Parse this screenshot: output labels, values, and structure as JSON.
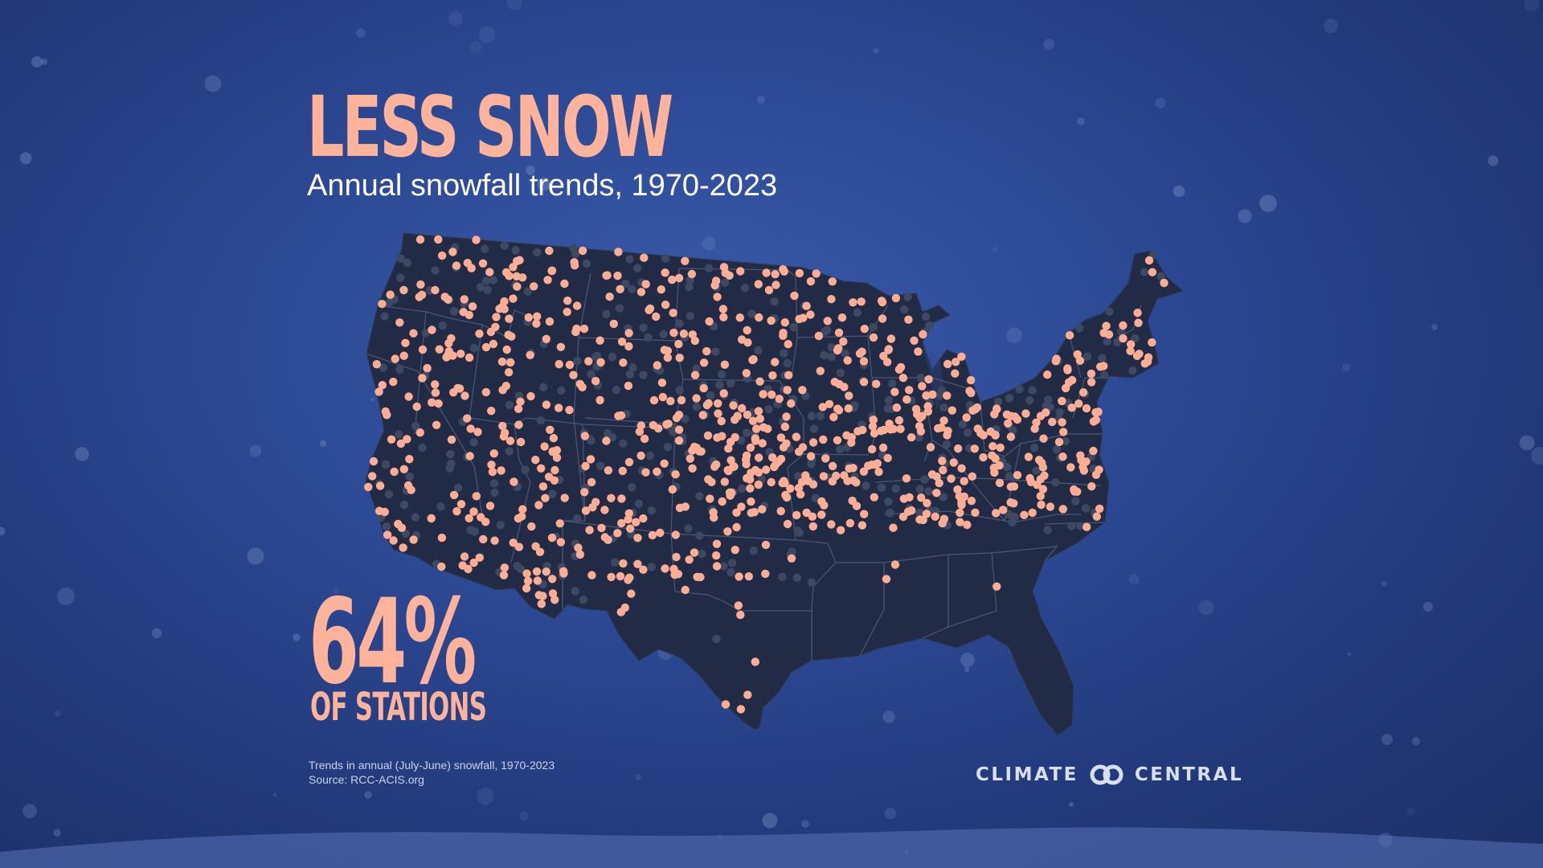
{
  "title": "LESS SNOW",
  "subtitle": "Annual snowfall trends, 1970-2023",
  "stat": {
    "value": "64%",
    "label": "OF STATIONS"
  },
  "footnote": {
    "line1": "Trends in annual (July-June) snowfall, 1970-2023",
    "line2": "Source: RCC-ACIS.org"
  },
  "brand": {
    "left": "CLIMATE",
    "right": "CENTRAL",
    "logo_icon": "two-interlocking-rings-icon"
  },
  "colors": {
    "background": "#2d4a96",
    "land": "#222b45",
    "state_borders": "#4a5878",
    "decreasing_station_dot": "#ffad94",
    "other_station_dot": "#3d4962",
    "title_accent": "#ffb39a"
  },
  "map": {
    "region": "Contiguous United States",
    "legend_note": "Highlighted dots mark stations with decreasing snowfall",
    "share_decreasing": 0.64
  }
}
